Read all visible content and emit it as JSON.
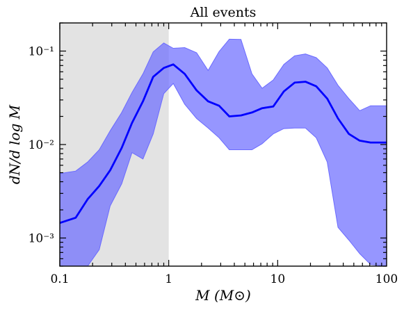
{
  "chart_data": {
    "type": "area",
    "title": "All events",
    "xlabel": "M (M⊙)",
    "ylabel": "dN/d log M",
    "xscale": "log",
    "yscale": "log",
    "xlim": [
      0.1,
      100
    ],
    "ylim": [
      0.0005,
      0.2
    ],
    "grid": false,
    "legend": "none",
    "x_ticks": [
      {
        "value": 0.1,
        "label": "0.1"
      },
      {
        "value": 1,
        "label": "1"
      },
      {
        "value": 10,
        "label": "10"
      },
      {
        "value": 100,
        "label": "100"
      }
    ],
    "y_ticks": [
      {
        "value": 0.001,
        "label": "10⁻³"
      },
      {
        "value": 0.01,
        "label": "10⁻²"
      },
      {
        "value": 0.1,
        "label": "10⁻¹"
      }
    ],
    "shaded_region": {
      "x_start": 0.1,
      "x_end": 1,
      "color": "#d9d9d9"
    },
    "colors": {
      "line": "#0000ff",
      "band": "#6a6aff"
    },
    "series": [
      {
        "x": [
          0.1,
          0.14,
          0.18,
          0.23,
          0.29,
          0.37,
          0.46,
          0.58,
          0.72,
          0.9,
          1.1,
          1.4,
          1.8,
          2.3,
          2.9,
          3.6,
          4.6,
          5.8,
          7.2,
          9.1,
          11.4,
          14.3,
          18,
          22.6,
          28.5,
          35.8,
          45,
          56.6,
          71.2,
          100
        ],
        "values": [
          0.00145,
          0.00165,
          0.0026,
          0.0036,
          0.0053,
          0.0092,
          0.017,
          0.029,
          0.053,
          0.066,
          0.072,
          0.057,
          0.038,
          0.029,
          0.026,
          0.02,
          0.0205,
          0.022,
          0.0245,
          0.0255,
          0.037,
          0.046,
          0.047,
          0.042,
          0.031,
          0.019,
          0.013,
          0.011,
          0.0105,
          0.0105
        ],
        "lower": [
          0.0005,
          0.0005,
          0.0005,
          0.00075,
          0.0022,
          0.0038,
          0.0082,
          0.007,
          0.013,
          0.035,
          0.045,
          0.027,
          0.019,
          0.015,
          0.0118,
          0.0088,
          0.0088,
          0.0088,
          0.0102,
          0.013,
          0.0148,
          0.015,
          0.015,
          0.0118,
          0.0065,
          0.0013,
          0.00095,
          0.00068,
          0.00052,
          0.0005
        ],
        "upper": [
          0.0049,
          0.0052,
          0.0065,
          0.0088,
          0.014,
          0.022,
          0.036,
          0.057,
          0.098,
          0.122,
          0.107,
          0.109,
          0.096,
          0.062,
          0.099,
          0.134,
          0.133,
          0.057,
          0.04,
          0.049,
          0.072,
          0.089,
          0.093,
          0.085,
          0.066,
          0.043,
          0.031,
          0.023,
          0.026,
          0.026
        ]
      }
    ]
  }
}
